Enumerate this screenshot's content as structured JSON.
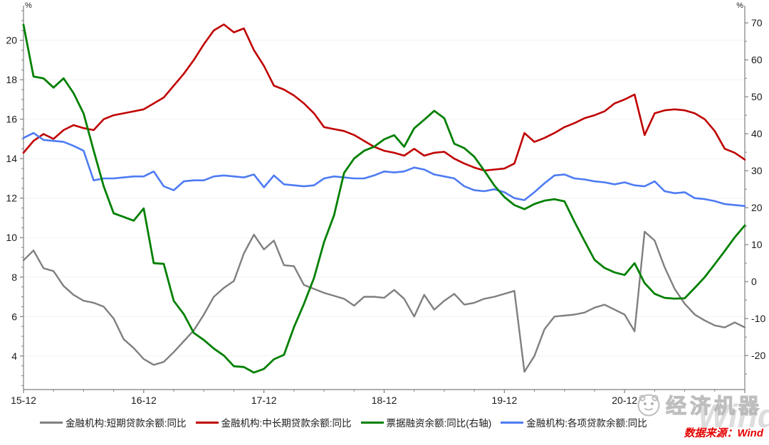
{
  "unit_labels": {
    "left": "%",
    "right": "%"
  },
  "chart_data": {
    "type": "line",
    "grid": "horizontal-faint",
    "legend_position": "bottom",
    "x_tick_labels": [
      "15-12",
      "16-12",
      "17-12",
      "18-12",
      "19-12",
      "20-12"
    ],
    "x_tick_indices": [
      0,
      12,
      24,
      36,
      48,
      60
    ],
    "x_minor_every": 3,
    "left_axis": {
      "unit": "%",
      "min": 2.3,
      "max": 21.5,
      "ticks": [
        4,
        6,
        8,
        10,
        12,
        14,
        16,
        18,
        20
      ],
      "minor_step": 0.5
    },
    "right_axis": {
      "unit": "%",
      "min": -29.2,
      "max": 73.3,
      "ticks": [
        -20,
        -10,
        0,
        10,
        20,
        30,
        40,
        50,
        60,
        70
      ],
      "minor_step": 5
    },
    "x": [
      "15-12",
      "16-01",
      "16-02",
      "16-03",
      "16-04",
      "16-05",
      "16-06",
      "16-07",
      "16-08",
      "16-09",
      "16-10",
      "16-11",
      "16-12",
      "17-01",
      "17-02",
      "17-03",
      "17-04",
      "17-05",
      "17-06",
      "17-07",
      "17-08",
      "17-09",
      "17-10",
      "17-11",
      "17-12",
      "18-01",
      "18-02",
      "18-03",
      "18-04",
      "18-05",
      "18-06",
      "18-07",
      "18-08",
      "18-09",
      "18-10",
      "18-11",
      "18-12",
      "19-01",
      "19-02",
      "19-03",
      "19-04",
      "19-05",
      "19-06",
      "19-07",
      "19-08",
      "19-09",
      "19-10",
      "19-11",
      "19-12",
      "20-01",
      "20-02",
      "20-03",
      "20-04",
      "20-05",
      "20-06",
      "20-07",
      "20-08",
      "20-09",
      "20-10",
      "20-11",
      "20-12",
      "21-01",
      "21-02",
      "21-03",
      "21-04",
      "21-05",
      "21-06",
      "21-07",
      "21-08",
      "21-09",
      "21-10",
      "21-11",
      "21-12"
    ],
    "series": [
      {
        "name": "金融机构:短期贷款余额:同比",
        "axis": "left",
        "color": "#7f7f7f",
        "width": 2.4,
        "values": [
          8.85,
          9.35,
          8.45,
          8.3,
          7.55,
          7.1,
          6.8,
          6.7,
          6.5,
          5.9,
          4.85,
          4.4,
          3.85,
          3.55,
          3.7,
          4.2,
          4.75,
          5.3,
          6.1,
          7.0,
          7.45,
          7.8,
          9.2,
          10.15,
          9.4,
          9.85,
          8.6,
          8.55,
          7.6,
          7.4,
          7.2,
          7.05,
          6.9,
          6.55,
          7.0,
          7.0,
          6.95,
          7.35,
          6.9,
          6.0,
          7.1,
          6.35,
          6.8,
          7.15,
          6.6,
          6.7,
          6.9,
          7.0,
          7.15,
          7.3,
          3.2,
          4.0,
          5.35,
          6.0,
          6.05,
          6.1,
          6.2,
          6.45,
          6.6,
          6.35,
          6.1,
          5.25,
          10.3,
          9.85,
          8.5,
          7.4,
          6.65,
          6.1,
          5.8,
          5.55,
          5.45,
          5.7,
          5.45
        ]
      },
      {
        "name": "金融机构:中长期贷款余额:同比",
        "axis": "left",
        "color": "#c00000",
        "width": 2.6,
        "values": [
          14.3,
          14.9,
          15.25,
          15.0,
          15.45,
          15.7,
          15.55,
          15.45,
          16.0,
          16.2,
          16.3,
          16.4,
          16.5,
          16.8,
          17.1,
          17.7,
          18.3,
          19.0,
          19.8,
          20.5,
          20.8,
          20.4,
          20.6,
          19.5,
          18.7,
          17.7,
          17.5,
          17.2,
          16.8,
          16.3,
          15.6,
          15.5,
          15.4,
          15.2,
          14.9,
          14.6,
          14.4,
          14.3,
          14.15,
          14.5,
          14.15,
          14.3,
          14.35,
          14.0,
          13.75,
          13.55,
          13.4,
          13.45,
          13.5,
          13.75,
          15.3,
          14.85,
          15.05,
          15.3,
          15.6,
          15.8,
          16.05,
          16.2,
          16.4,
          16.8,
          17.0,
          17.25,
          15.2,
          16.3,
          16.45,
          16.5,
          16.45,
          16.3,
          16.0,
          15.4,
          14.5,
          14.3,
          13.95
        ]
      },
      {
        "name": "票据融资余额:同比(右轴)",
        "axis": "right",
        "color": "#008000",
        "width": 2.8,
        "values": [
          69.5,
          55.5,
          55.0,
          52.5,
          55.0,
          51.0,
          45.5,
          35.5,
          25.8,
          18.5,
          17.5,
          16.5,
          19.8,
          5.0,
          4.8,
          -5.2,
          -8.8,
          -13.9,
          -15.8,
          -18.1,
          -20.0,
          -22.9,
          -23.1,
          -24.6,
          -23.6,
          -21.0,
          -19.8,
          -12.3,
          -6.0,
          1.0,
          10.7,
          18.0,
          29.4,
          33.3,
          35.4,
          36.5,
          38.5,
          39.6,
          36.5,
          41.5,
          43.8,
          46.2,
          44.2,
          37.3,
          36.1,
          33.8,
          30.0,
          26.0,
          22.9,
          20.7,
          19.6,
          21.0,
          21.9,
          22.3,
          21.7,
          16.2,
          11.0,
          5.9,
          3.7,
          2.5,
          1.8,
          5.0,
          -0.4,
          -3.3,
          -4.4,
          -4.6,
          -4.5,
          -1.7,
          1.2,
          4.7,
          8.3,
          12.0,
          15.2
        ]
      },
      {
        "name": "金融机构:各项贷款余额:同比",
        "axis": "left",
        "color": "#4d7bf3",
        "width": 2.6,
        "values": [
          15.05,
          15.3,
          14.95,
          14.9,
          14.85,
          14.65,
          14.4,
          12.9,
          13.0,
          13.0,
          13.05,
          13.1,
          13.1,
          13.35,
          12.6,
          12.4,
          12.85,
          12.9,
          12.9,
          13.1,
          13.15,
          13.1,
          13.05,
          13.2,
          12.55,
          13.15,
          12.7,
          12.65,
          12.6,
          12.65,
          13.0,
          13.1,
          13.05,
          13.0,
          13.0,
          13.15,
          13.35,
          13.3,
          13.35,
          13.55,
          13.45,
          13.2,
          13.1,
          13.0,
          12.6,
          12.4,
          12.35,
          12.45,
          12.3,
          12.0,
          11.9,
          12.3,
          12.75,
          13.15,
          13.2,
          13.0,
          12.95,
          12.85,
          12.8,
          12.7,
          12.8,
          12.65,
          12.6,
          12.85,
          12.35,
          12.25,
          12.3,
          12.0,
          11.95,
          11.85,
          11.7,
          11.65,
          11.6
        ]
      }
    ]
  },
  "legend": {
    "items": [
      {
        "label": "金融机构:短期贷款余额:同比",
        "color": "#7f7f7f"
      },
      {
        "label": "金融机构:中长期贷款余额:同比",
        "color": "#c00000"
      },
      {
        "label": "票据融资余额:同比(右轴)",
        "color": "#008000"
      },
      {
        "label": "金融机构:各项贷款余额:同比",
        "color": "#4d7bf3"
      }
    ]
  },
  "source": {
    "label": "数据来源：Wind",
    "color": "#e60000"
  },
  "watermark": {
    "brand": "经济机器",
    "wind": "Wind"
  },
  "style": {
    "spine_color": "#7f7f7f",
    "grid_color": "#f2f2f2",
    "tick_label_color": "#1a1a1a"
  }
}
